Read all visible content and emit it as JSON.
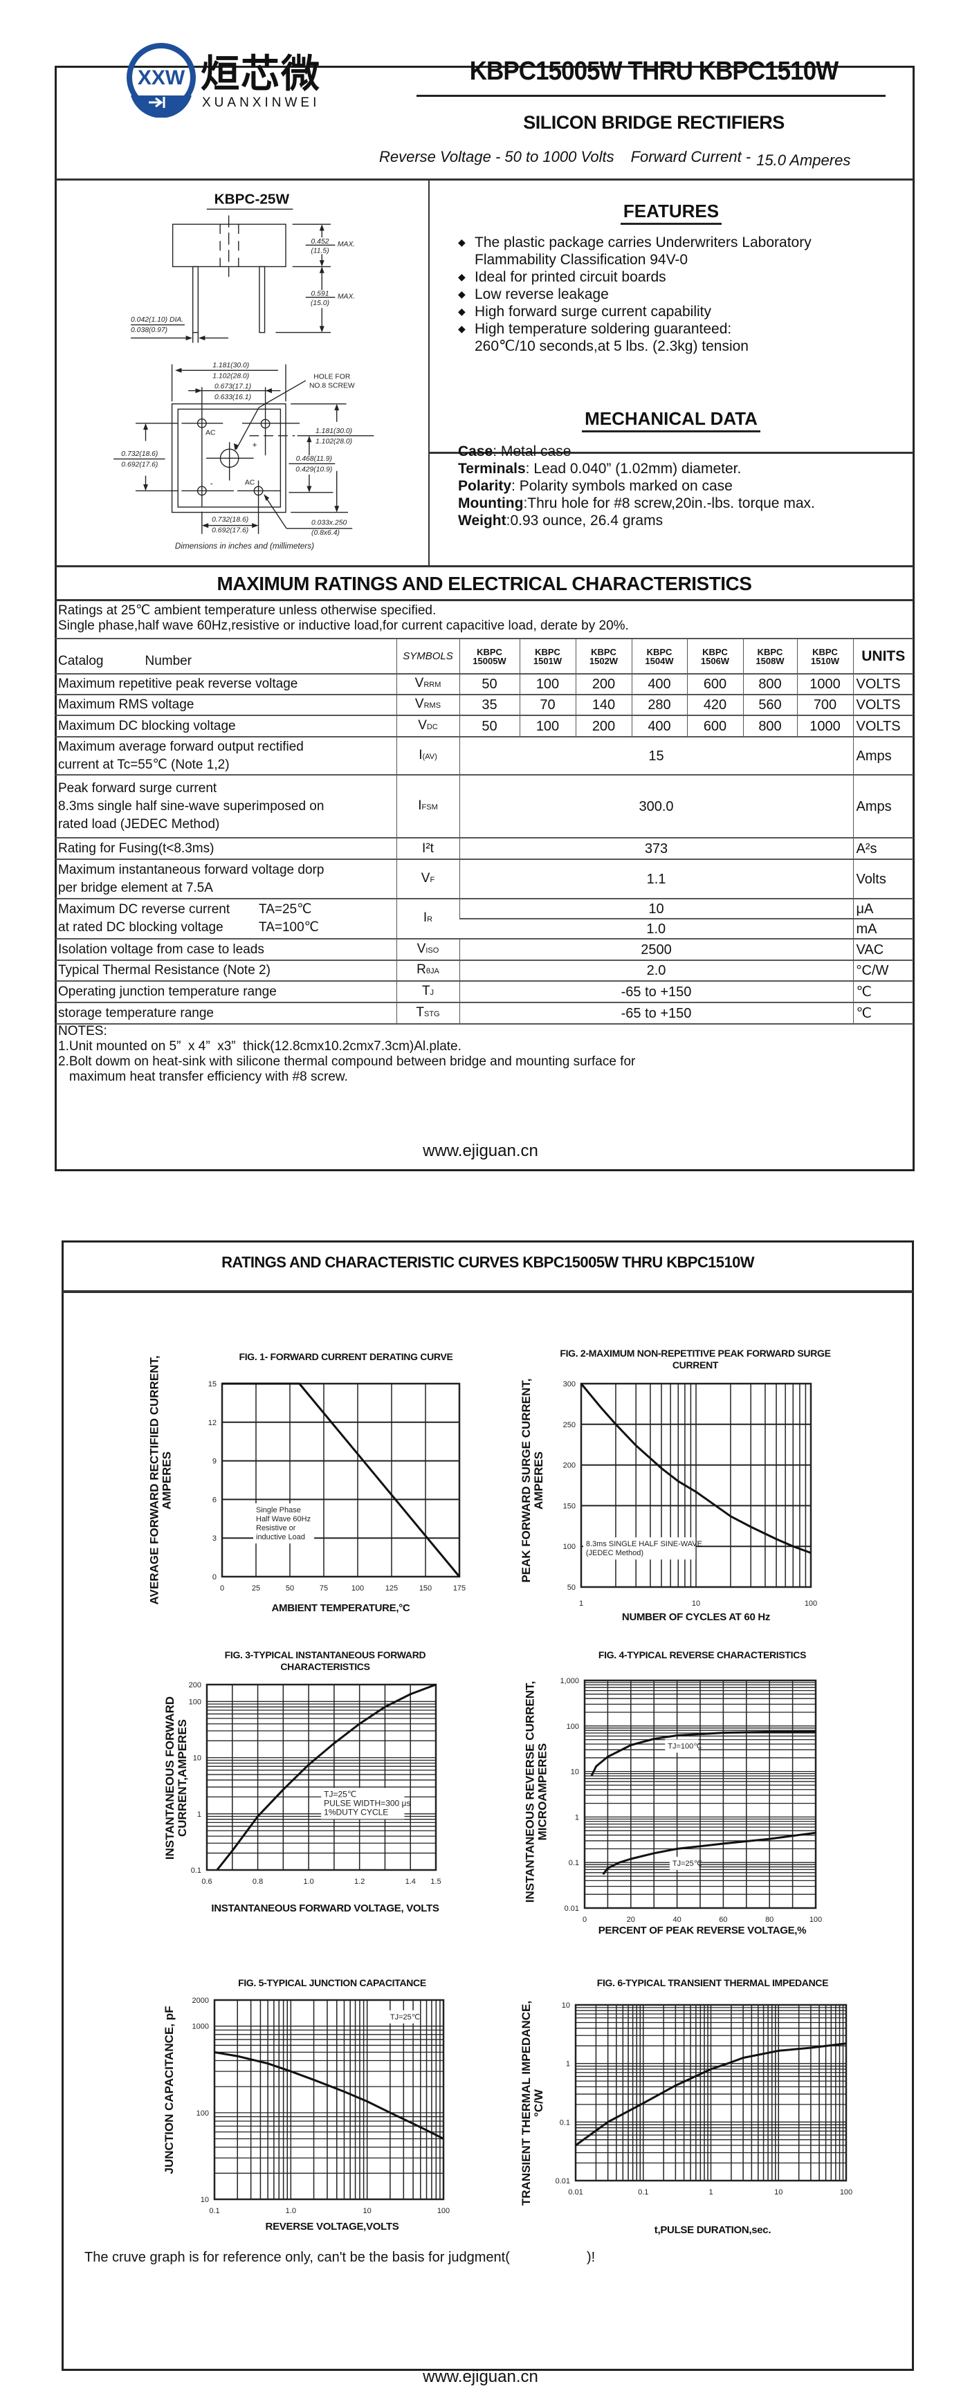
{
  "header": {
    "logo_cn": "烜芯微",
    "logo_en": "XUANXINWEI",
    "logo_mark": "XXW",
    "title": "KBPC15005W THRU KBPC1510W",
    "subtitle": "SILICON BRIDGE RECTIFIERS",
    "reverse_voltage": "Reverse Voltage - 50 to 1000 Volts",
    "forward_current_label": "Forward Current -",
    "forward_current_value": "15.0 Amperes"
  },
  "package": {
    "title": "KBPC-25W",
    "dims": {
      "h1": "0.452",
      "h1mm": "(11.5)",
      "max": "MAX.",
      "h2": "0.591",
      "h2mm": "(15.0)",
      "dia1": "0.042(1.10) DIA.",
      "dia2": "0.038(0.97)",
      "w1": "1.181(30.0)",
      "w2": "1.102(28.0)",
      "p1": "0.673(17.1)",
      "p2": "0.633(16.1)",
      "hole1": "HOLE FOR",
      "hole2": "NO.8 SCREW",
      "l1": "0.732(18.6)",
      "l2": "0.692(17.6)",
      "r1": "1.181(30.0)",
      "r2": "1.102(28.0)",
      "m1": "0.468(11.9)",
      "m2": "0.429(10.9)",
      "b1": "0.732(18.6)",
      "b2": "0.692(17.6)",
      "t1": "0.033x.250",
      "t2": "(0.8x6.4)",
      "ac": "AC",
      "plus": "+",
      "minus": "-"
    },
    "caption": "Dimensions in inches and (millimeters)"
  },
  "features": {
    "title": "FEATURES",
    "items": [
      [
        "The plastic package carries Underwriters Laboratory",
        "Flammability Classification 94V-0"
      ],
      [
        "Ideal for printed circuit boards"
      ],
      [
        "Low reverse leakage"
      ],
      [
        "High forward surge current capability"
      ],
      [
        "High temperature soldering guaranteed:",
        "260℃/10 seconds,at 5 lbs. (2.3kg) tension"
      ]
    ]
  },
  "mechanical": {
    "title": "MECHANICAL DATA",
    "items": [
      {
        "k": "Case",
        "v": ": Metal case"
      },
      {
        "k": "Terminals",
        "v": ": Lead 0.040”  (1.02mm) diameter."
      },
      {
        "k": "Polarity",
        "v": ": Polarity symbols marked on case"
      },
      {
        "k": "Mounting",
        "v": ":Thru hole for #8 screw,20in.-lbs. torque max."
      },
      {
        "k": "Weight",
        "v": ":0.93 ounce, 26.4 grams"
      }
    ]
  },
  "ratings": {
    "title": "MAXIMUM RATINGS AND ELECTRICAL CHARACTERISTICS",
    "line1": "Ratings at 25℃ ambient temperature unless otherwise specified.",
    "line2": "Single phase,half wave 60Hz,resistive or inductive load,for current capacitive load, derate by 20%.",
    "header": {
      "catalog": "Catalog",
      "number": "Number",
      "symbols": "SYMBOLS",
      "units": "UNITS",
      "parts": [
        [
          "KBPC",
          "15005W"
        ],
        [
          "KBPC",
          "1501W"
        ],
        [
          "KBPC",
          "1502W"
        ],
        [
          "KBPC",
          "1504W"
        ],
        [
          "KBPC",
          "1506W"
        ],
        [
          "KBPC",
          "1508W"
        ],
        [
          "KBPC",
          "1510W"
        ]
      ]
    },
    "rows": [
      {
        "label": "Maximum repetitive peak reverse voltage",
        "sym": "V",
        "sub": "RRM",
        "values": [
          "50",
          "100",
          "200",
          "400",
          "600",
          "800",
          "1000"
        ],
        "unit": "VOLTS"
      },
      {
        "label": "Maximum RMS voltage",
        "sym": "V",
        "sub": "RMS",
        "values": [
          "35",
          "70",
          "140",
          "280",
          "420",
          "560",
          "700"
        ],
        "unit": "VOLTS"
      },
      {
        "label": "Maximum DC blocking voltage",
        "sym": "V",
        "sub": "DC",
        "values": [
          "50",
          "100",
          "200",
          "400",
          "600",
          "800",
          "1000"
        ],
        "unit": "VOLTS"
      },
      {
        "label": "Maximum average forward output rectified",
        "label2": "current at  Tc=55℃  (Note 1,2)",
        "sym": "I",
        "sub": "(AV)",
        "value": "15",
        "unit": "Amps"
      },
      {
        "label": "Peak forward surge current",
        "label2": "8.3ms single half sine-wave superimposed on",
        "label3": "rated load (JEDEC Method)",
        "sym": "I",
        "sub": "FSM",
        "value": "300.0",
        "unit": "Amps"
      },
      {
        "label": "Rating for Fusing(t<8.3ms)",
        "sym": "I²t",
        "sub": "",
        "value": "373",
        "unit": "A²s"
      },
      {
        "label": "Maximum instantaneous forward voltage dorp",
        "label2": "per bridge element at 7.5A",
        "sym": "V",
        "sub": "F",
        "value": "1.1",
        "unit": "Volts"
      },
      {
        "label": "Maximum DC reverse current",
        "cond1": "TA=25℃",
        "label2": "at rated DC blocking voltage",
        "cond2": "TA=100℃",
        "sym": "I",
        "sub": "R",
        "value": "10",
        "unit": "μA",
        "value2": "1.0",
        "unit2": "mA"
      },
      {
        "label": "Isolation voltage from case to leads",
        "sym": "V",
        "sub": "ISO",
        "value": "2500",
        "unit": "VAC"
      },
      {
        "label": "Typical Thermal Resistance (Note 2)",
        "sym": "R",
        "sub": "θJA",
        "value": "2.0",
        "unit": "°C/W"
      },
      {
        "label": "Operating junction temperature range",
        "sym": "T",
        "sub": "J",
        "value": "-65 to +150",
        "unit": "℃"
      },
      {
        "label": "storage temperature range",
        "sym": "T",
        "sub": "STG",
        "value": "-65 to +150",
        "unit": "℃"
      }
    ],
    "notes": [
      "NOTES:",
      "1.Unit mounted on 5”  x 4”  x3”  thick(12.8cmx10.2cmx7.3cm)Al.plate.",
      "2.Bolt dowm on heat-sink with silicone thermal compound between bridge and mounting surface for",
      "   maximum heat transfer efficiency with #8 screw."
    ]
  },
  "footer": "www.ejiguan.cn",
  "page2": {
    "title": "RATINGS AND CHARACTERISTIC CURVES KBPC15005W THRU KBPC1510W",
    "disclaimer": "The cruve graph is for reference only, can't be the basis for judgment(                    )!"
  },
  "chart_data": [
    {
      "type": "line",
      "title": "FIG. 1- FORWARD CURRENT DERATING CURVE",
      "xlabel": "AMBIENT TEMPERATURE,°C",
      "ylabel": [
        "AVERAGE FORWARD RECTIFIED CURRENT,",
        "AMPERES"
      ],
      "xscale": "linear",
      "yscale": "linear",
      "xlim": [
        0,
        175
      ],
      "ylim": [
        0,
        15
      ],
      "xticks": [
        0,
        25,
        50,
        75,
        100,
        125,
        150,
        175
      ],
      "yticks": [
        0,
        3,
        6,
        9,
        12,
        15
      ],
      "grid": true,
      "series": [
        {
          "x": [
            0,
            57,
            175
          ],
          "y": [
            15,
            15,
            0
          ]
        }
      ],
      "annotations": [
        {
          "text": [
            "Single Phase",
            "Half Wave 60Hz",
            "Resistive or",
            "inductive Load"
          ],
          "at": [
            25,
            5
          ]
        }
      ]
    },
    {
      "type": "line",
      "title": "FIG. 2-MAXIMUM NON-REPETITIVE PEAK FORWARD SURGE CURRENT",
      "xlabel": "NUMBER OF CYCLES AT 60 Hz",
      "ylabel": [
        "PEAK  FORWARD SURGE CURRENT,",
        "AMPERES"
      ],
      "xscale": "log",
      "yscale": "linear",
      "xlim": [
        1,
        100
      ],
      "ylim": [
        50,
        300
      ],
      "xticks": [
        1,
        10,
        100
      ],
      "yticks": [
        50,
        100,
        150,
        200,
        250,
        300
      ],
      "grid": true,
      "series": [
        {
          "x": [
            1,
            1.5,
            2,
            3,
            5,
            7,
            10,
            20,
            30,
            50,
            70,
            100
          ],
          "y": [
            300,
            270,
            250,
            224,
            196,
            180,
            167,
            137,
            124,
            109,
            100,
            92
          ]
        }
      ],
      "annotations": [
        {
          "text": [
            "8.3ms SINGLE HALF SINE-WAVE",
            "(JEDEC Method)"
          ],
          "at": [
            1.1,
            100
          ]
        }
      ]
    },
    {
      "type": "line",
      "title": "FIG. 3-TYPICAL INSTANTANEOUS FORWARD CHARACTERISTICS",
      "xlabel": "INSTANTANEOUS FORWARD VOLTAGE, VOLTS",
      "ylabel": [
        "INSTANTANEOUS FORWARD",
        "CURRENT,AMPERES"
      ],
      "xscale": "linear",
      "yscale": "log",
      "xlim": [
        0.6,
        1.5
      ],
      "ylim": [
        0.1,
        200
      ],
      "xticks": [
        0.6,
        0.8,
        1.0,
        1.2,
        1.4,
        1.5
      ],
      "xticklabels": [
        "0.6",
        "0.8",
        "1.0",
        "1.2",
        "1.4",
        "1.5"
      ],
      "yticks": [
        0.1,
        1,
        10,
        100,
        200
      ],
      "grid": true,
      "series": [
        {
          "x": [
            0.64,
            0.7,
            0.8,
            0.9,
            1.0,
            1.1,
            1.2,
            1.3,
            1.4,
            1.5
          ],
          "y": [
            0.1,
            0.22,
            0.9,
            2.7,
            7.5,
            18,
            40,
            80,
            135,
            200
          ]
        }
      ],
      "annotations": [
        {
          "text": [
            "TJ=25℃",
            "PULSE WIDTH=300 μs",
            "1%DUTY CYCLE"
          ],
          "at": [
            1.06,
            2
          ]
        }
      ]
    },
    {
      "type": "line",
      "title": "FIG. 4-TYPICAL REVERSE CHARACTERISTICS",
      "xlabel": "PERCENT OF PEAK REVERSE VOLTAGE,%",
      "ylabel": [
        "INSTANTANEOUS REVERSE CURRENT,",
        "MICROAMPERES"
      ],
      "xscale": "linear",
      "yscale": "log",
      "xlim": [
        0,
        100
      ],
      "ylim": [
        0.01,
        1000
      ],
      "xticks": [
        0,
        20,
        40,
        60,
        80,
        100
      ],
      "yticks": [
        0.01,
        0.1,
        1,
        10,
        100,
        1000
      ],
      "yticklabels": [
        "0.01",
        "0.1",
        "1",
        "10",
        "100",
        "1,000"
      ],
      "grid": true,
      "series": [
        {
          "name": "TJ=100℃",
          "x": [
            3,
            5,
            10,
            20,
            30,
            40,
            60,
            80,
            100
          ],
          "y": [
            8,
            13,
            21,
            38,
            52,
            62,
            71,
            74,
            75
          ]
        },
        {
          "name": "TJ=25℃",
          "x": [
            8,
            10,
            15,
            20,
            30,
            40,
            60,
            80,
            100
          ],
          "y": [
            0.055,
            0.075,
            0.1,
            0.12,
            0.16,
            0.2,
            0.26,
            0.33,
            0.45
          ]
        }
      ],
      "annotations": [
        {
          "text": [
            "TJ=100℃"
          ],
          "at": [
            36,
            32
          ]
        },
        {
          "text": [
            "TJ=25℃"
          ],
          "at": [
            38,
            0.085
          ]
        }
      ]
    },
    {
      "type": "line",
      "title": "FIG. 5-TYPICAL JUNCTION CAPACITANCE",
      "xlabel": "REVERSE VOLTAGE,VOLTS",
      "ylabel": [
        "JUNCTION CAPACITANCE, pF"
      ],
      "xscale": "log",
      "yscale": "log",
      "xlim": [
        0.1,
        100
      ],
      "ylim": [
        10,
        2000
      ],
      "xticks": [
        0.1,
        1,
        10,
        100
      ],
      "xticklabels": [
        "0.1",
        "1.0",
        "10",
        "100"
      ],
      "yticks": [
        10,
        100,
        1000,
        2000
      ],
      "grid": true,
      "series": [
        {
          "x": [
            0.1,
            0.2,
            0.5,
            1,
            2,
            5,
            10,
            20,
            50,
            100
          ],
          "y": [
            500,
            450,
            370,
            300,
            240,
            175,
            135,
            100,
            68,
            50
          ]
        }
      ],
      "annotations": [
        {
          "text": [
            "TJ=25℃"
          ],
          "at": [
            20,
            1200
          ]
        }
      ]
    },
    {
      "type": "line",
      "title": "FIG. 6-TYPICAL TRANSIENT THERMAL IMPEDANCE",
      "xlabel": "t,PULSE DURATION,sec.",
      "ylabel": [
        "TRANSIENT THERMAL IMPEDANCE,",
        "°C/W"
      ],
      "xscale": "log",
      "yscale": "log",
      "xlim": [
        0.01,
        100
      ],
      "ylim": [
        0.01,
        10
      ],
      "xticks": [
        0.01,
        0.1,
        1,
        10,
        100
      ],
      "yticks": [
        0.01,
        0.1,
        1,
        10
      ],
      "grid": true,
      "series": [
        {
          "x": [
            0.01,
            0.03,
            0.1,
            0.3,
            1,
            2,
            3,
            10,
            30,
            100
          ],
          "y": [
            0.04,
            0.1,
            0.21,
            0.42,
            0.8,
            1.05,
            1.25,
            1.65,
            1.85,
            2.2
          ]
        }
      ],
      "annotations": []
    }
  ]
}
